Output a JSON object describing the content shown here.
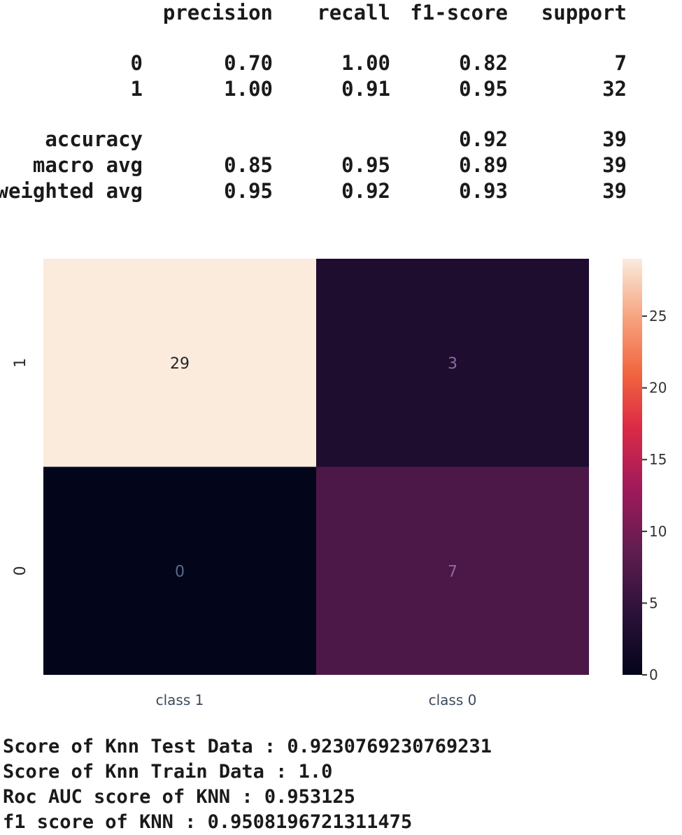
{
  "report": {
    "headers": [
      "precision",
      "recall",
      "f1-score",
      "support"
    ],
    "rows": [
      {
        "label": "0",
        "precision": "0.70",
        "recall": "1.00",
        "f1": "0.82",
        "support": "7"
      },
      {
        "label": "1",
        "precision": "1.00",
        "recall": "0.91",
        "f1": "0.95",
        "support": "32"
      },
      {
        "label": "accuracy",
        "precision": "",
        "recall": "",
        "f1": "0.92",
        "support": "39"
      },
      {
        "label": "macro avg",
        "precision": "0.85",
        "recall": "0.95",
        "f1": "0.89",
        "support": "39"
      },
      {
        "label": "weighted avg",
        "precision": "0.95",
        "recall": "0.92",
        "f1": "0.93",
        "support": "39"
      }
    ]
  },
  "chart_data": {
    "type": "heatmap",
    "title": "",
    "xlabel": "",
    "ylabel": "",
    "x_categories": [
      "class 1",
      "class 0"
    ],
    "y_categories": [
      "1",
      "0"
    ],
    "values": [
      [
        29,
        3
      ],
      [
        0,
        7
      ]
    ],
    "colormap": "rocket",
    "colorbar": {
      "min": 0,
      "max": 29,
      "ticks": [
        0,
        5,
        10,
        15,
        20,
        25
      ]
    },
    "grid": false
  },
  "scores": [
    "Score of Knn Test Data : 0.9230769230769231",
    "Score of Knn Train Data : 1.0",
    "Roc AUC score of KNN : 0.953125",
    "f1 score of KNN : 0.9508196721311475"
  ]
}
